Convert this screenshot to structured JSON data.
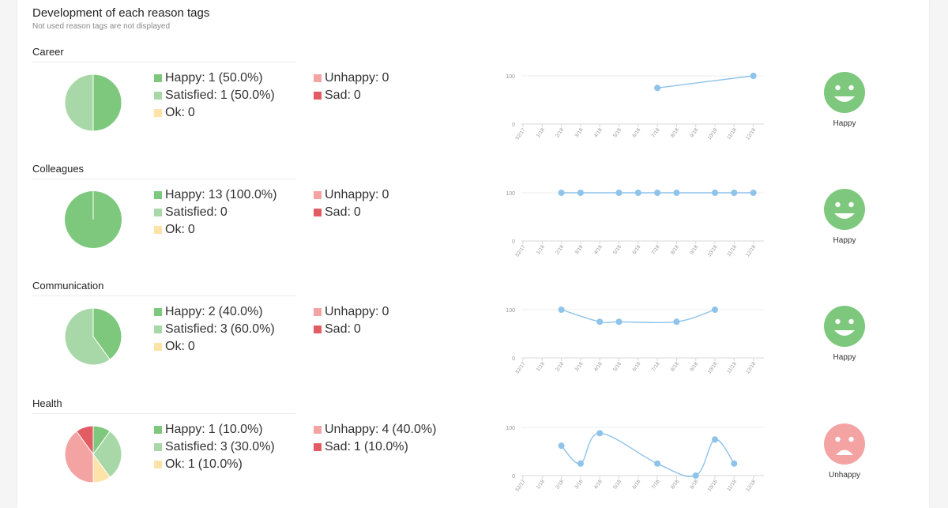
{
  "page": {
    "title": "Development of each reason tags",
    "subtitle": "Not used reason tags are not displayed"
  },
  "colors": {
    "happy": "#7ec87e",
    "satisfied": "#a8d8a8",
    "ok": "#fde3a7",
    "unhappy": "#f4a3a3",
    "sad": "#e25c64",
    "line": "#8ec3ea",
    "axis": "#d8d8d8",
    "tick_text": "#999999"
  },
  "axis": {
    "x_labels": [
      "52/17",
      "1/18",
      "2/18",
      "3/18",
      "4/18",
      "5/18",
      "6/18",
      "7/18",
      "8/18",
      "9/18",
      "10/18",
      "11/18",
      "12/18"
    ],
    "y_labels": [
      "100",
      "0"
    ]
  },
  "sections": [
    {
      "name": "Career",
      "legend": {
        "happy": {
          "label": "Happy:",
          "value": "1",
          "pct": "(50.0%)"
        },
        "satisfied": {
          "label": "Satisfied:",
          "value": "1",
          "pct": "(50.0%)"
        },
        "ok": {
          "label": "Ok:",
          "value": "0",
          "pct": ""
        },
        "unhappy": {
          "label": "Unhappy:",
          "value": "0",
          "pct": ""
        },
        "sad": {
          "label": "Sad:",
          "value": "0",
          "pct": ""
        }
      },
      "pie": {
        "happy": 1,
        "satisfied": 1,
        "ok": 0,
        "unhappy": 0,
        "sad": 0
      },
      "mood": {
        "label": "Happy",
        "type": "happy",
        "icon": "happy-face-icon"
      }
    },
    {
      "name": "Colleagues",
      "legend": {
        "happy": {
          "label": "Happy:",
          "value": "13",
          "pct": "(100.0%)"
        },
        "satisfied": {
          "label": "Satisfied:",
          "value": "0",
          "pct": ""
        },
        "ok": {
          "label": "Ok:",
          "value": "0",
          "pct": ""
        },
        "unhappy": {
          "label": "Unhappy:",
          "value": "0",
          "pct": ""
        },
        "sad": {
          "label": "Sad:",
          "value": "0",
          "pct": ""
        }
      },
      "pie": {
        "happy": 13,
        "satisfied": 0,
        "ok": 0,
        "unhappy": 0,
        "sad": 0
      },
      "mood": {
        "label": "Happy",
        "type": "happy",
        "icon": "happy-face-icon"
      }
    },
    {
      "name": "Communication",
      "legend": {
        "happy": {
          "label": "Happy:",
          "value": "2",
          "pct": "(40.0%)"
        },
        "satisfied": {
          "label": "Satisfied:",
          "value": "3",
          "pct": "(60.0%)"
        },
        "ok": {
          "label": "Ok:",
          "value": "0",
          "pct": ""
        },
        "unhappy": {
          "label": "Unhappy:",
          "value": "0",
          "pct": ""
        },
        "sad": {
          "label": "Sad:",
          "value": "0",
          "pct": ""
        }
      },
      "pie": {
        "happy": 2,
        "satisfied": 3,
        "ok": 0,
        "unhappy": 0,
        "sad": 0
      },
      "mood": {
        "label": "Happy",
        "type": "happy",
        "icon": "happy-face-icon"
      }
    },
    {
      "name": "Health",
      "legend": {
        "happy": {
          "label": "Happy:",
          "value": "1",
          "pct": "(10.0%)"
        },
        "satisfied": {
          "label": "Satisfied:",
          "value": "3",
          "pct": "(30.0%)"
        },
        "ok": {
          "label": "Ok:",
          "value": "1",
          "pct": "(10.0%)"
        },
        "unhappy": {
          "label": "Unhappy:",
          "value": "4",
          "pct": "(40.0%)"
        },
        "sad": {
          "label": "Sad:",
          "value": "1",
          "pct": "(10.0%)"
        }
      },
      "pie": {
        "happy": 1,
        "satisfied": 3,
        "ok": 1,
        "unhappy": 4,
        "sad": 1
      },
      "mood": {
        "label": "Unhappy",
        "type": "unhappy",
        "icon": "unhappy-face-icon"
      }
    }
  ],
  "chart_data": [
    {
      "type": "line",
      "x": [
        "52/17",
        "1/18",
        "2/18",
        "3/18",
        "4/18",
        "5/18",
        "6/18",
        "7/18",
        "8/18",
        "9/18",
        "10/18",
        "11/18",
        "12/18"
      ],
      "series": [
        {
          "values": [
            null,
            null,
            null,
            null,
            null,
            null,
            null,
            75,
            null,
            null,
            null,
            null,
            100
          ]
        }
      ],
      "ylim": [
        0,
        100
      ],
      "title": "",
      "xlabel": "",
      "ylabel": ""
    },
    {
      "type": "line",
      "x": [
        "52/17",
        "1/18",
        "2/18",
        "3/18",
        "4/18",
        "5/18",
        "6/18",
        "7/18",
        "8/18",
        "9/18",
        "10/18",
        "11/18",
        "12/18"
      ],
      "series": [
        {
          "values": [
            null,
            null,
            100,
            100,
            null,
            100,
            100,
            100,
            100,
            null,
            100,
            100,
            100
          ]
        }
      ],
      "ylim": [
        0,
        100
      ],
      "title": "",
      "xlabel": "",
      "ylabel": ""
    },
    {
      "type": "line",
      "x": [
        "52/17",
        "1/18",
        "2/18",
        "3/18",
        "4/18",
        "5/18",
        "6/18",
        "7/18",
        "8/18",
        "9/18",
        "10/18",
        "11/18",
        "12/18"
      ],
      "series": [
        {
          "values": [
            null,
            null,
            100,
            null,
            75,
            75,
            null,
            null,
            75,
            null,
            100,
            null,
            null
          ]
        }
      ],
      "ylim": [
        0,
        100
      ],
      "title": "",
      "xlabel": "",
      "ylabel": ""
    },
    {
      "type": "line",
      "x": [
        "52/17",
        "1/18",
        "2/18",
        "3/18",
        "4/18",
        "5/18",
        "6/18",
        "7/18",
        "8/18",
        "9/18",
        "10/18",
        "11/18",
        "12/18"
      ],
      "series": [
        {
          "values": [
            null,
            null,
            62,
            25,
            88,
            null,
            null,
            25,
            null,
            0,
            75,
            25,
            null
          ]
        }
      ],
      "ylim": [
        0,
        100
      ],
      "title": "",
      "xlabel": "",
      "ylabel": ""
    }
  ]
}
